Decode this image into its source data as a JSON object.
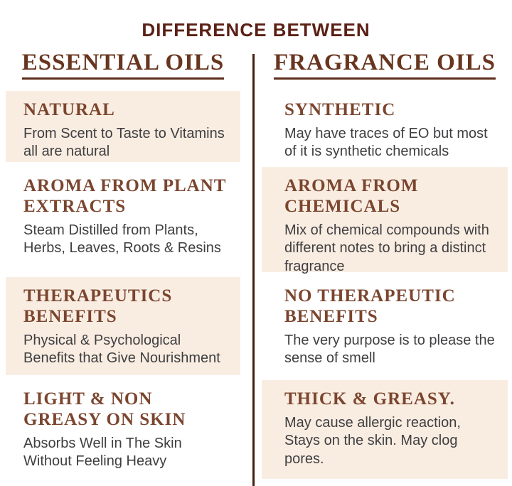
{
  "title": "DIFFERENCE BETWEEN",
  "columns": [
    {
      "header": "ESSENTIAL OILS",
      "rows": [
        {
          "heading": "NATURAL",
          "body": "From Scent to Taste to Vitamins all are natural"
        },
        {
          "heading": "AROMA FROM PLANT EXTRACTS",
          "body": "Steam Distilled from Plants, Herbs, Leaves, Roots & Resins"
        },
        {
          "heading": "THERAPEUTICS BENEFITS",
          "body": "Physical & Psychological Benefits that Give Nourishment"
        },
        {
          "heading": "LIGHT & NON GREASY ON SKIN",
          "body": "Absorbs Well in The Skin Without Feeling Heavy"
        }
      ]
    },
    {
      "header": "FRAGRANCE OILS",
      "rows": [
        {
          "heading": "SYNTHETIC",
          "body": "May have traces of EO but most of it is synthetic chemicals"
        },
        {
          "heading": "AROMA FROM CHEMICALS",
          "body": "Mix of chemical compounds with different notes to bring a distinct fragrance"
        },
        {
          "heading": "NO THERAPEUTIC BENEFITS",
          "body": "The very purpose is to please the sense of smell"
        },
        {
          "heading": "THICK & GREASY.",
          "body": "May cause allergic reaction, Stays on the skin. May clog pores."
        }
      ]
    }
  ],
  "colors": {
    "title_maroon": "#5b2015",
    "column_header_brown": "#68351f",
    "row_heading_brown": "#7b452e",
    "body_text_gray": "#3f3e40",
    "card_beige": "#f9ede2",
    "divider_brown": "#45200f",
    "background": "#ffffff"
  }
}
